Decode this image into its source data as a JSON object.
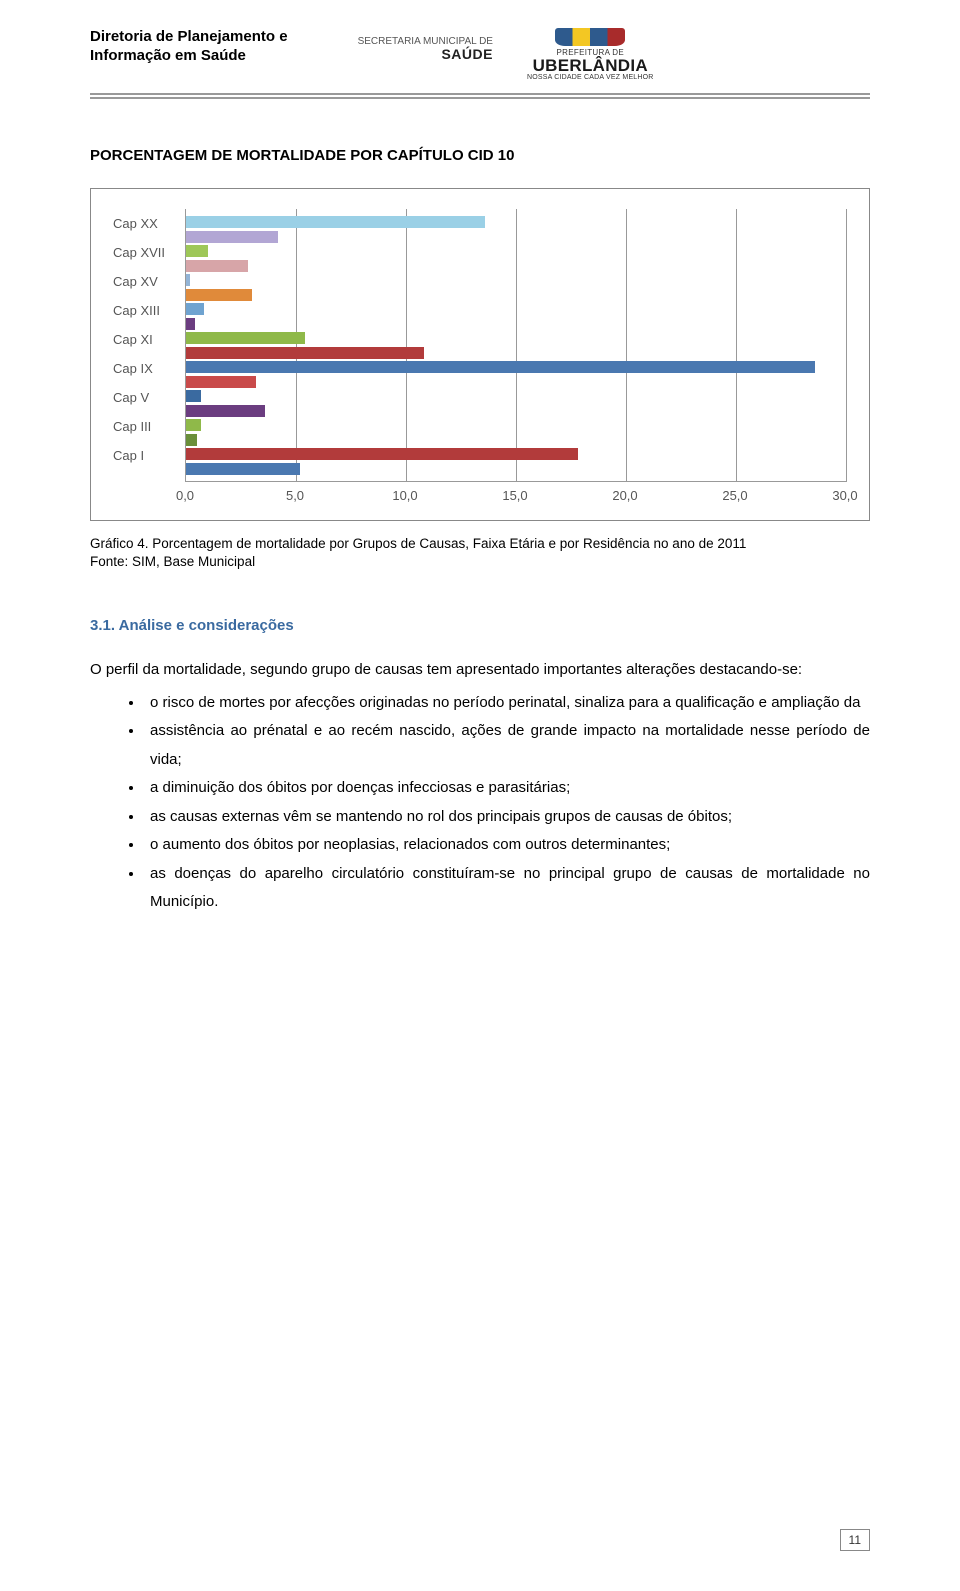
{
  "header": {
    "org_line1": "Diretoria de Planejamento e",
    "org_line2": "Informação em Saúde",
    "secretaria_small": "SECRETARIA MUNICIPAL DE",
    "secretaria_big": "SAÚDE",
    "prefeitura": "PREFEITURA DE",
    "city": "UBERLÂNDIA",
    "tagline": "NOSSA CIDADE CADA VEZ MELHOR"
  },
  "chart": {
    "title": "PORCENTAGEM DE MORTALIDADE POR CAPÍTULO CID 10",
    "type": "bar-horizontal",
    "xlim": [
      0,
      30
    ],
    "xtick_step": 5,
    "xticks": [
      "0,0",
      "5,0",
      "10,0",
      "15,0",
      "20,0",
      "25,0",
      "30,0"
    ],
    "grid_color": "#999999",
    "border_color": "#888888",
    "background_color": "#ffffff",
    "label_fontsize": 13,
    "label_color": "#555555",
    "ytick_labels": [
      "Cap XX",
      "Cap XVII",
      "Cap XV",
      "Cap XIII",
      "Cap XI",
      "Cap IX",
      "Cap V",
      "Cap III",
      "Cap I"
    ],
    "bars": [
      {
        "value": 13.6,
        "color": "#9ad0e6"
      },
      {
        "value": 4.2,
        "color": "#b2a6d4"
      },
      {
        "value": 1.0,
        "color": "#9ec758"
      },
      {
        "value": 2.8,
        "color": "#d7a5a8"
      },
      {
        "value": 0.2,
        "color": "#93b4d6"
      },
      {
        "value": 3.0,
        "color": "#e08a3a"
      },
      {
        "value": 0.8,
        "color": "#6fa3d0"
      },
      {
        "value": 0.4,
        "color": "#6b3d80"
      },
      {
        "value": 5.4,
        "color": "#8fb949"
      },
      {
        "value": 10.8,
        "color": "#b23b3b"
      },
      {
        "value": 28.6,
        "color": "#4a78b0"
      },
      {
        "value": 3.2,
        "color": "#c94a4a"
      },
      {
        "value": 0.7,
        "color": "#3a6aa0"
      },
      {
        "value": 3.6,
        "color": "#6b3d80"
      },
      {
        "value": 0.7,
        "color": "#8fb949"
      },
      {
        "value": 0.5,
        "color": "#6a8f3a"
      },
      {
        "value": 17.8,
        "color": "#b23b3b"
      },
      {
        "value": 5.2,
        "color": "#4a78b0"
      }
    ]
  },
  "caption": {
    "line1": "Gráfico 4. Porcentagem de mortalidade por Grupos de Causas, Faixa Etária e por Residência no ano de 2011",
    "line2": "Fonte: SIM, Base Municipal"
  },
  "section": {
    "heading": "3.1. Análise e considerações",
    "intro": "O perfil da mortalidade, segundo grupo de causas tem apresentado importantes alterações destacando-se:",
    "bullets": [
      "o risco de mortes por afecções originadas no período perinatal, sinaliza para a qualificação e ampliação da",
      "assistência ao prénatal e ao recém nascido, ações de grande impacto na mortalidade nesse período de vida;",
      "a diminuição dos óbitos por doenças infecciosas e parasitárias;",
      "as causas externas vêm se mantendo no rol dos principais grupos de causas de óbitos;",
      "o aumento dos óbitos por neoplasias, relacionados com outros determinantes;",
      "as doenças do aparelho circulatório constituíram-se no principal grupo de causas de mortalidade no Município."
    ]
  },
  "page_number": "11"
}
